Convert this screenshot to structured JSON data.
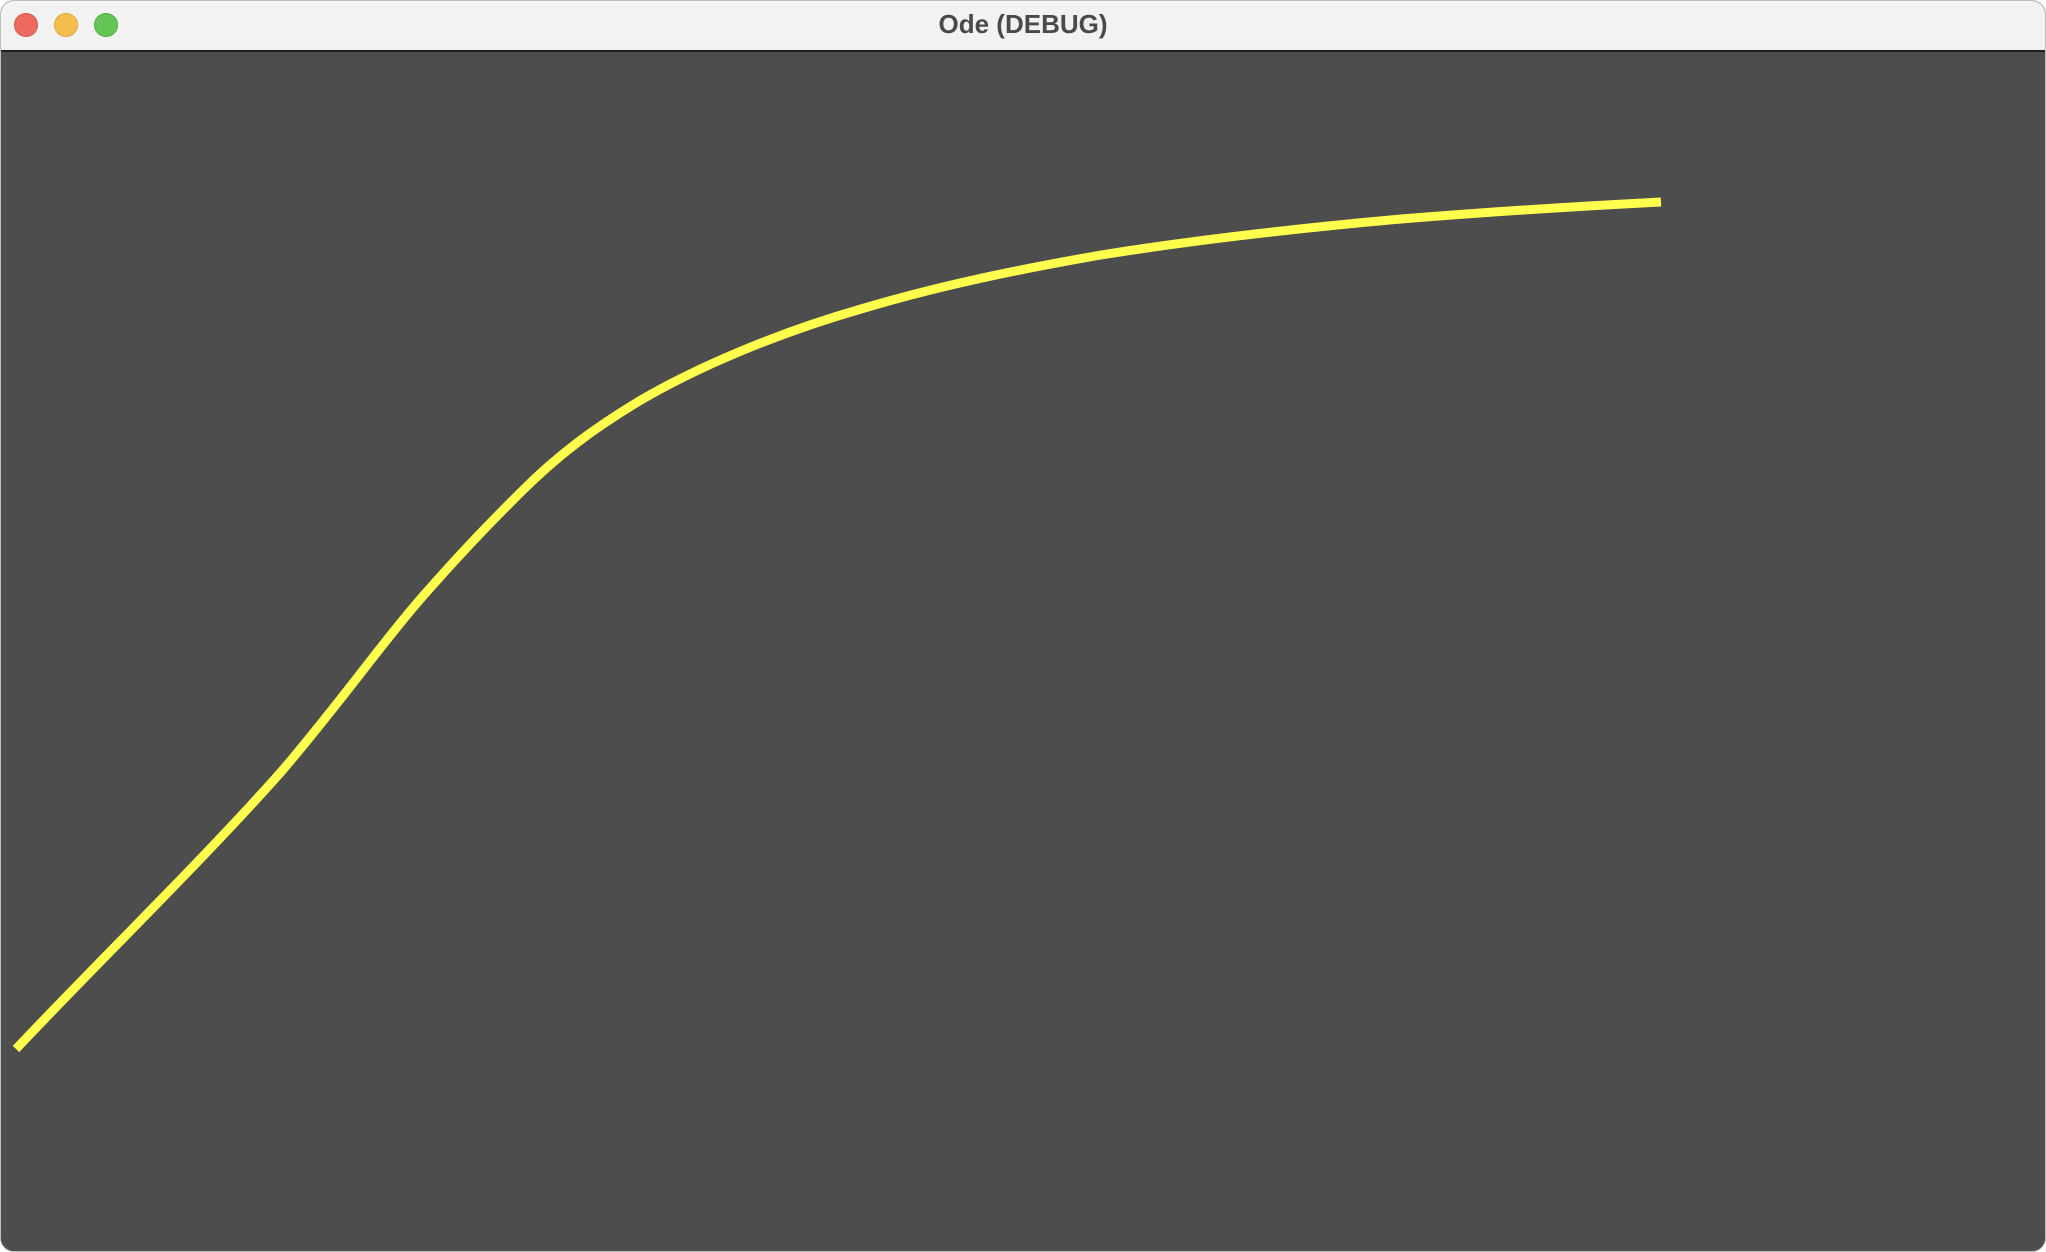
{
  "window": {
    "title": "Ode (DEBUG)",
    "controls": {
      "close": "close-icon",
      "minimize": "minimize-icon",
      "maximize": "maximize-icon"
    },
    "colors": {
      "close": "#ee6a5f",
      "minimize": "#f5bf4f",
      "maximize": "#62c554",
      "titlebar": "#f2f2f2"
    }
  },
  "canvas": {
    "background": "#4d4d4d",
    "curve_color": "#ffff4d"
  }
}
